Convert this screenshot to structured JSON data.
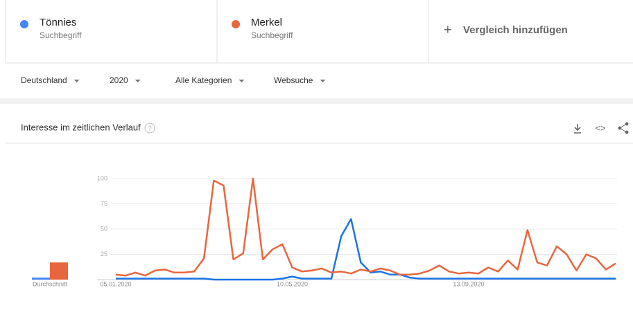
{
  "compare_add": "Vergleich hinzufügen",
  "filters": [
    "Deutschland",
    "2020",
    "Alle Kategorien",
    "Websuche"
  ],
  "chart_data": {
    "type": "line",
    "title": "Interesse im zeitlichen Verlauf",
    "average_label": "Durchschnitt",
    "categories": [
      "05.01.2020",
      null,
      null,
      null,
      null,
      null,
      null,
      null,
      null,
      null,
      null,
      null,
      null,
      null,
      null,
      null,
      null,
      null,
      "10.05.2020",
      null,
      null,
      null,
      null,
      null,
      null,
      null,
      null,
      null,
      null,
      null,
      null,
      null,
      null,
      null,
      null,
      null,
      "13.09.2020",
      null,
      null,
      null,
      null,
      null,
      null,
      null,
      null,
      null,
      null,
      null,
      null,
      null,
      null,
      null
    ],
    "ylim": [
      0,
      100
    ],
    "yticks": [
      25,
      50,
      75,
      100
    ],
    "grid": true,
    "series": [
      {
        "name": "Tönnies",
        "kind": "Suchbegriff",
        "color": "#4285f4",
        "line_color": "#1a73e8",
        "average": 2,
        "values": [
          1,
          1,
          1,
          1,
          1,
          1,
          1,
          1,
          1,
          1,
          0,
          0,
          0,
          0,
          0,
          0,
          0,
          1,
          3,
          1,
          1,
          1,
          1,
          43,
          60,
          17,
          7,
          8,
          5,
          5,
          2,
          1,
          1,
          1,
          1,
          1,
          1,
          1,
          1,
          1,
          1,
          1,
          1,
          1,
          1,
          1,
          1,
          1,
          1,
          1,
          1,
          1
        ]
      },
      {
        "name": "Merkel",
        "kind": "Suchbegriff",
        "color": "#e8663d",
        "line_color": "#e8663d",
        "average": 17,
        "values": [
          5,
          4,
          7,
          4,
          9,
          10,
          7,
          7,
          8,
          21,
          98,
          93,
          20,
          26,
          100,
          20,
          30,
          35,
          12,
          8,
          9,
          11,
          7,
          8,
          6,
          10,
          8,
          11,
          9,
          5,
          5,
          6,
          9,
          14,
          8,
          6,
          7,
          6,
          12,
          8,
          19,
          10,
          49,
          17,
          14,
          33,
          25,
          9,
          25,
          21,
          10,
          16
        ]
      }
    ]
  }
}
